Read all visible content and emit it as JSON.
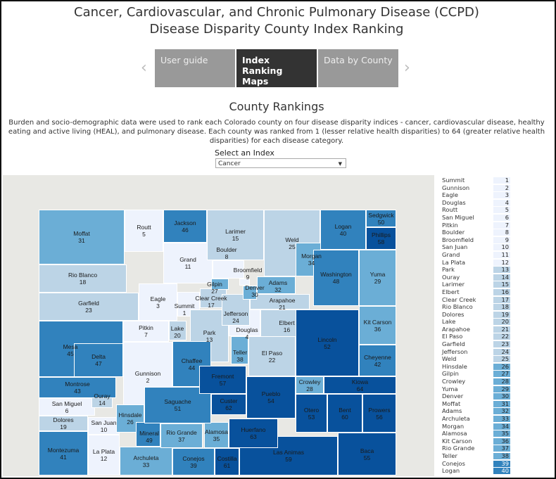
{
  "title_line1": "Cancer, Cardiovascular, and Chronic Pulmonary Disease (CCPD)",
  "title_line2": "Disease Disparity County Index Ranking",
  "tabs": [
    {
      "label": "User guide"
    },
    {
      "label": "Index Ranking Maps",
      "active": true
    },
    {
      "label": "Data by County"
    }
  ],
  "icons": {
    "prev": "chevron-left-icon",
    "next": "chevron-right-icon"
  },
  "section_title": "County Rankings",
  "description": "Burden and socio-demographic data were used to rank each Colorado county on four disease disparity indices - cancer, cardiovascular disease, healthy eating and active living (HEAL), and pulmonary disease. Each county was ranked from 1 (lesser relative health disparities) to 64 (greater relative health disparities) for each disease category.",
  "index_select": {
    "label": "Select an Index",
    "value": "Cancer"
  },
  "colors": {
    "q1": "#eef3fd",
    "q2": "#bcd4e6",
    "q3": "#6baed6",
    "q4": "#3182bd",
    "q5": "#08519c"
  },
  "counties": [
    {
      "name": "Summit",
      "rank": 1
    },
    {
      "name": "Gunnison",
      "rank": 2
    },
    {
      "name": "Eagle",
      "rank": 3
    },
    {
      "name": "Douglas",
      "rank": 4
    },
    {
      "name": "Routt",
      "rank": 5
    },
    {
      "name": "San Miguel",
      "rank": 6
    },
    {
      "name": "Pitkin",
      "rank": 7
    },
    {
      "name": "Boulder",
      "rank": 8
    },
    {
      "name": "Broomfield",
      "rank": 9
    },
    {
      "name": "San Juan",
      "rank": 10
    },
    {
      "name": "Grand",
      "rank": 11
    },
    {
      "name": "La Plata",
      "rank": 12
    },
    {
      "name": "Park",
      "rank": 13
    },
    {
      "name": "Ouray",
      "rank": 14
    },
    {
      "name": "Larimer",
      "rank": 15
    },
    {
      "name": "Elbert",
      "rank": 16
    },
    {
      "name": "Clear Creek",
      "rank": 17
    },
    {
      "name": "Rio Blanco",
      "rank": 18
    },
    {
      "name": "Dolores",
      "rank": 19
    },
    {
      "name": "Lake",
      "rank": 20
    },
    {
      "name": "Arapahoe",
      "rank": 21
    },
    {
      "name": "El Paso",
      "rank": 22
    },
    {
      "name": "Garfield",
      "rank": 23
    },
    {
      "name": "Jefferson",
      "rank": 24
    },
    {
      "name": "Weld",
      "rank": 25
    },
    {
      "name": "Hinsdale",
      "rank": 26
    },
    {
      "name": "Gilpin",
      "rank": 27
    },
    {
      "name": "Crowley",
      "rank": 28
    },
    {
      "name": "Yuma",
      "rank": 29
    },
    {
      "name": "Denver",
      "rank": 30
    },
    {
      "name": "Moffat",
      "rank": 31
    },
    {
      "name": "Adams",
      "rank": 32
    },
    {
      "name": "Archuleta",
      "rank": 33
    },
    {
      "name": "Morgan",
      "rank": 34
    },
    {
      "name": "Alamosa",
      "rank": 35
    },
    {
      "name": "Kit Carson",
      "rank": 36
    },
    {
      "name": "Rio Grande",
      "rank": 37
    },
    {
      "name": "Teller",
      "rank": 38
    },
    {
      "name": "Conejos",
      "rank": 39
    },
    {
      "name": "Logan",
      "rank": 40
    },
    {
      "name": "Montezuma",
      "rank": 41
    },
    {
      "name": "Cheyenne",
      "rank": 42
    },
    {
      "name": "Montrose",
      "rank": 43
    },
    {
      "name": "Chaffee",
      "rank": 44
    },
    {
      "name": "Mesa",
      "rank": 45
    },
    {
      "name": "Jackson",
      "rank": 46
    },
    {
      "name": "Delta",
      "rank": 47
    },
    {
      "name": "Washington",
      "rank": 48
    },
    {
      "name": "Mineral",
      "rank": 49
    },
    {
      "name": "Sedgwick",
      "rank": 50
    },
    {
      "name": "Saguache",
      "rank": 51
    },
    {
      "name": "Lincoln",
      "rank": 52
    },
    {
      "name": "Otero",
      "rank": 53
    },
    {
      "name": "Pueblo",
      "rank": 54
    },
    {
      "name": "Baca",
      "rank": 55
    },
    {
      "name": "Prowers",
      "rank": 56
    },
    {
      "name": "Fremont",
      "rank": 57
    },
    {
      "name": "Phillips",
      "rank": 58
    },
    {
      "name": "Las Animas",
      "rank": 59
    },
    {
      "name": "Bent",
      "rank": 60
    },
    {
      "name": "Costilla",
      "rank": 61
    },
    {
      "name": "Custer",
      "rank": 62
    },
    {
      "name": "Huerfano",
      "rank": 63
    },
    {
      "name": "Kiowa",
      "rank": 64
    }
  ]
}
